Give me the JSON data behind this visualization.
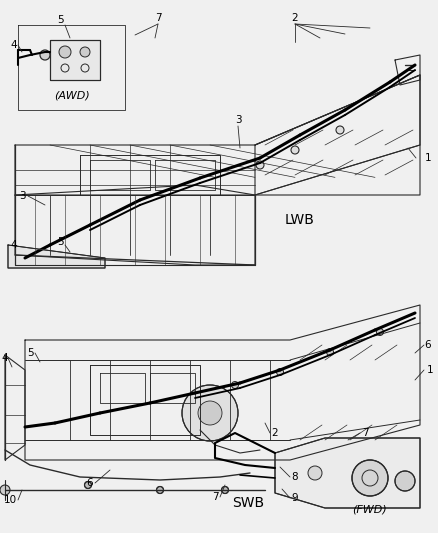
{
  "bg_color": "#f0f0f0",
  "line_color": "#2a2a2a",
  "thick_line_color": "#000000",
  "label_color": "#000000",
  "figsize": [
    4.38,
    5.33
  ],
  "dpi": 100,
  "lwb_label": "LWB",
  "swb_label": "SWB",
  "awd_label": "(AWD)",
  "fwd_label": "(FWD)",
  "part_numbers": [
    "1",
    "2",
    "3",
    "4",
    "5",
    "6",
    "7",
    "8",
    "9",
    "10"
  ],
  "font_size": 7.5,
  "label_font_size": 9
}
